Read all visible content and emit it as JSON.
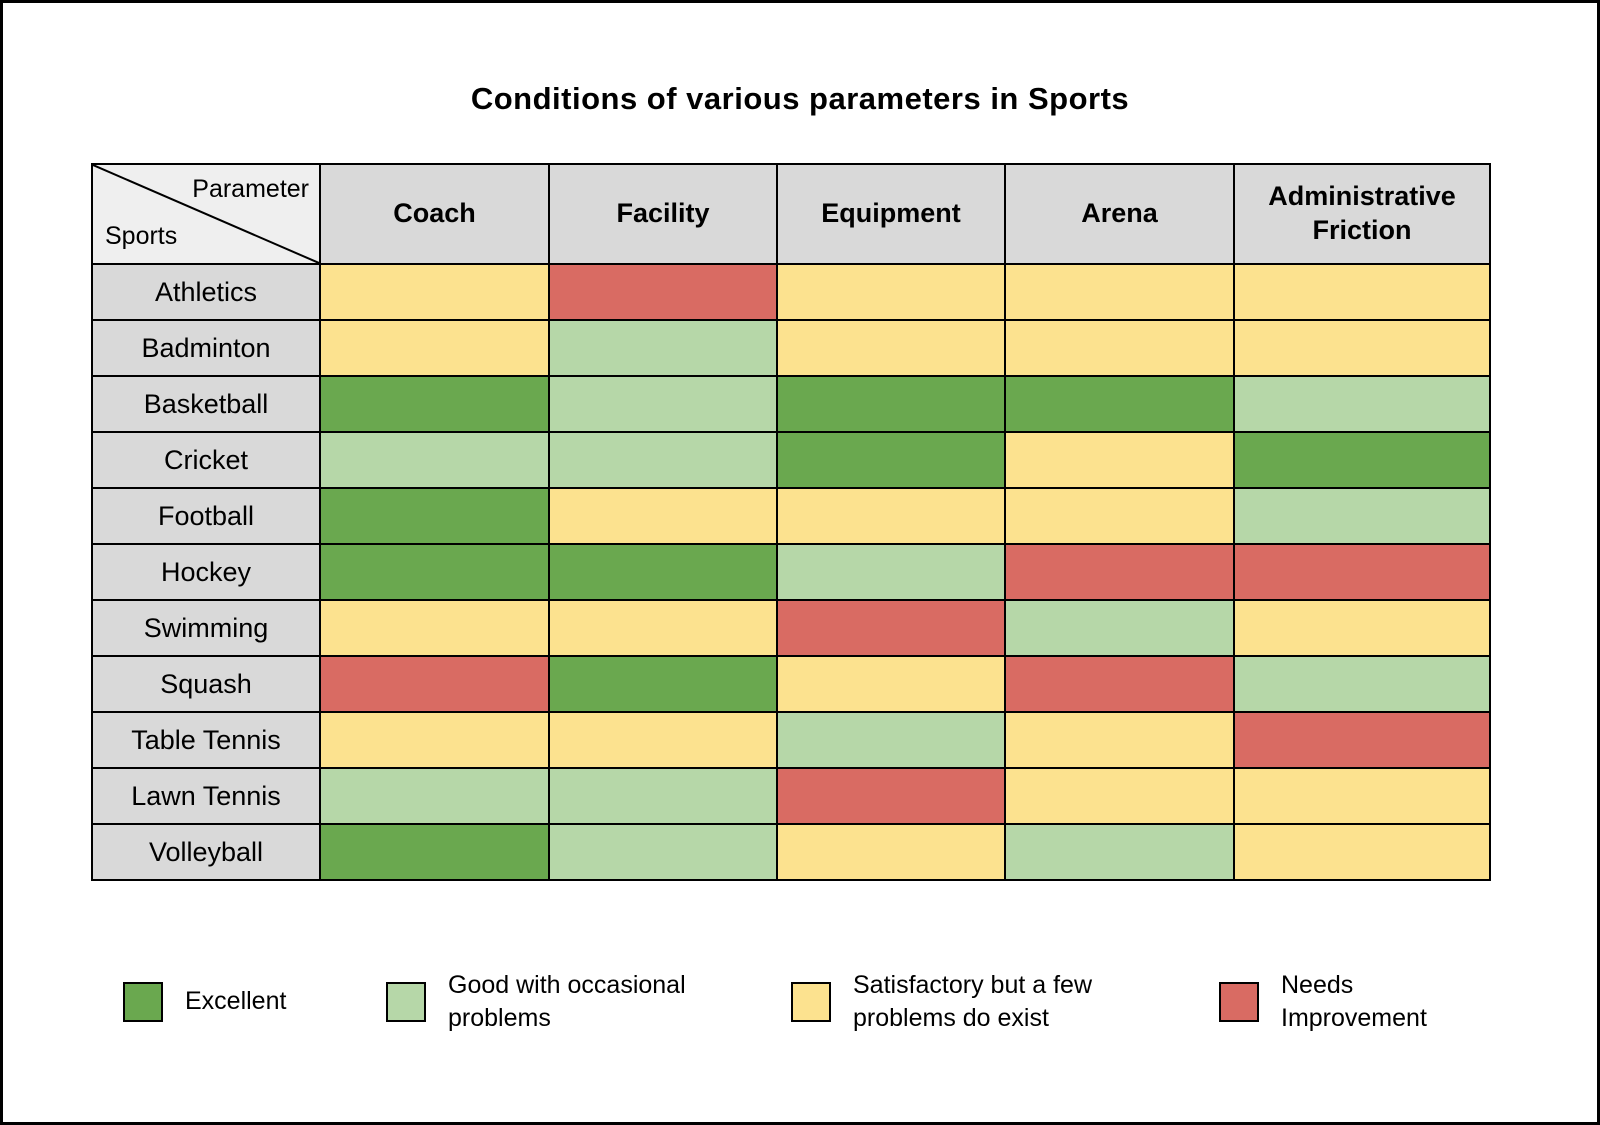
{
  "page": {
    "title": "Conditions of various parameters in Sports"
  },
  "table": {
    "corner": {
      "top": "Parameter",
      "bottom": "Sports"
    }
  },
  "chart_data": {
    "type": "heatmap",
    "title": "Conditions of various parameters in Sports",
    "columns": [
      "Coach",
      "Facility",
      "Equipment",
      "Arena",
      "Administrative Friction"
    ],
    "rows": [
      "Athletics",
      "Badminton",
      "Basketball",
      "Cricket",
      "Football",
      "Hockey",
      "Swimming",
      "Squash",
      "Table Tennis",
      "Lawn Tennis",
      "Volleyball"
    ],
    "values": [
      [
        "satisfactory",
        "needs-improvement",
        "satisfactory",
        "satisfactory",
        "satisfactory"
      ],
      [
        "satisfactory",
        "good",
        "satisfactory",
        "satisfactory",
        "satisfactory"
      ],
      [
        "excellent",
        "good",
        "excellent",
        "excellent",
        "good"
      ],
      [
        "good",
        "good",
        "excellent",
        "satisfactory",
        "excellent"
      ],
      [
        "excellent",
        "satisfactory",
        "satisfactory",
        "satisfactory",
        "good"
      ],
      [
        "excellent",
        "excellent",
        "good",
        "needs-improvement",
        "needs-improvement"
      ],
      [
        "satisfactory",
        "satisfactory",
        "needs-improvement",
        "good",
        "satisfactory"
      ],
      [
        "needs-improvement",
        "excellent",
        "satisfactory",
        "needs-improvement",
        "good"
      ],
      [
        "satisfactory",
        "satisfactory",
        "good",
        "satisfactory",
        "needs-improvement"
      ],
      [
        "good",
        "good",
        "needs-improvement",
        "satisfactory",
        "satisfactory"
      ],
      [
        "excellent",
        "good",
        "satisfactory",
        "good",
        "satisfactory"
      ]
    ],
    "legend": [
      {
        "code": "excellent",
        "label": "Excellent",
        "color": "#6aa84f"
      },
      {
        "code": "good",
        "label": "Good with occasional problems",
        "color": "#b6d7a8"
      },
      {
        "code": "satisfactory",
        "label": "Satisfactory but a few problems do exist",
        "color": "#fce28f"
      },
      {
        "code": "needs-improvement",
        "label": "Needs Improvement",
        "color": "#d96b63"
      }
    ],
    "legend_position": "bottom",
    "grid": true
  }
}
